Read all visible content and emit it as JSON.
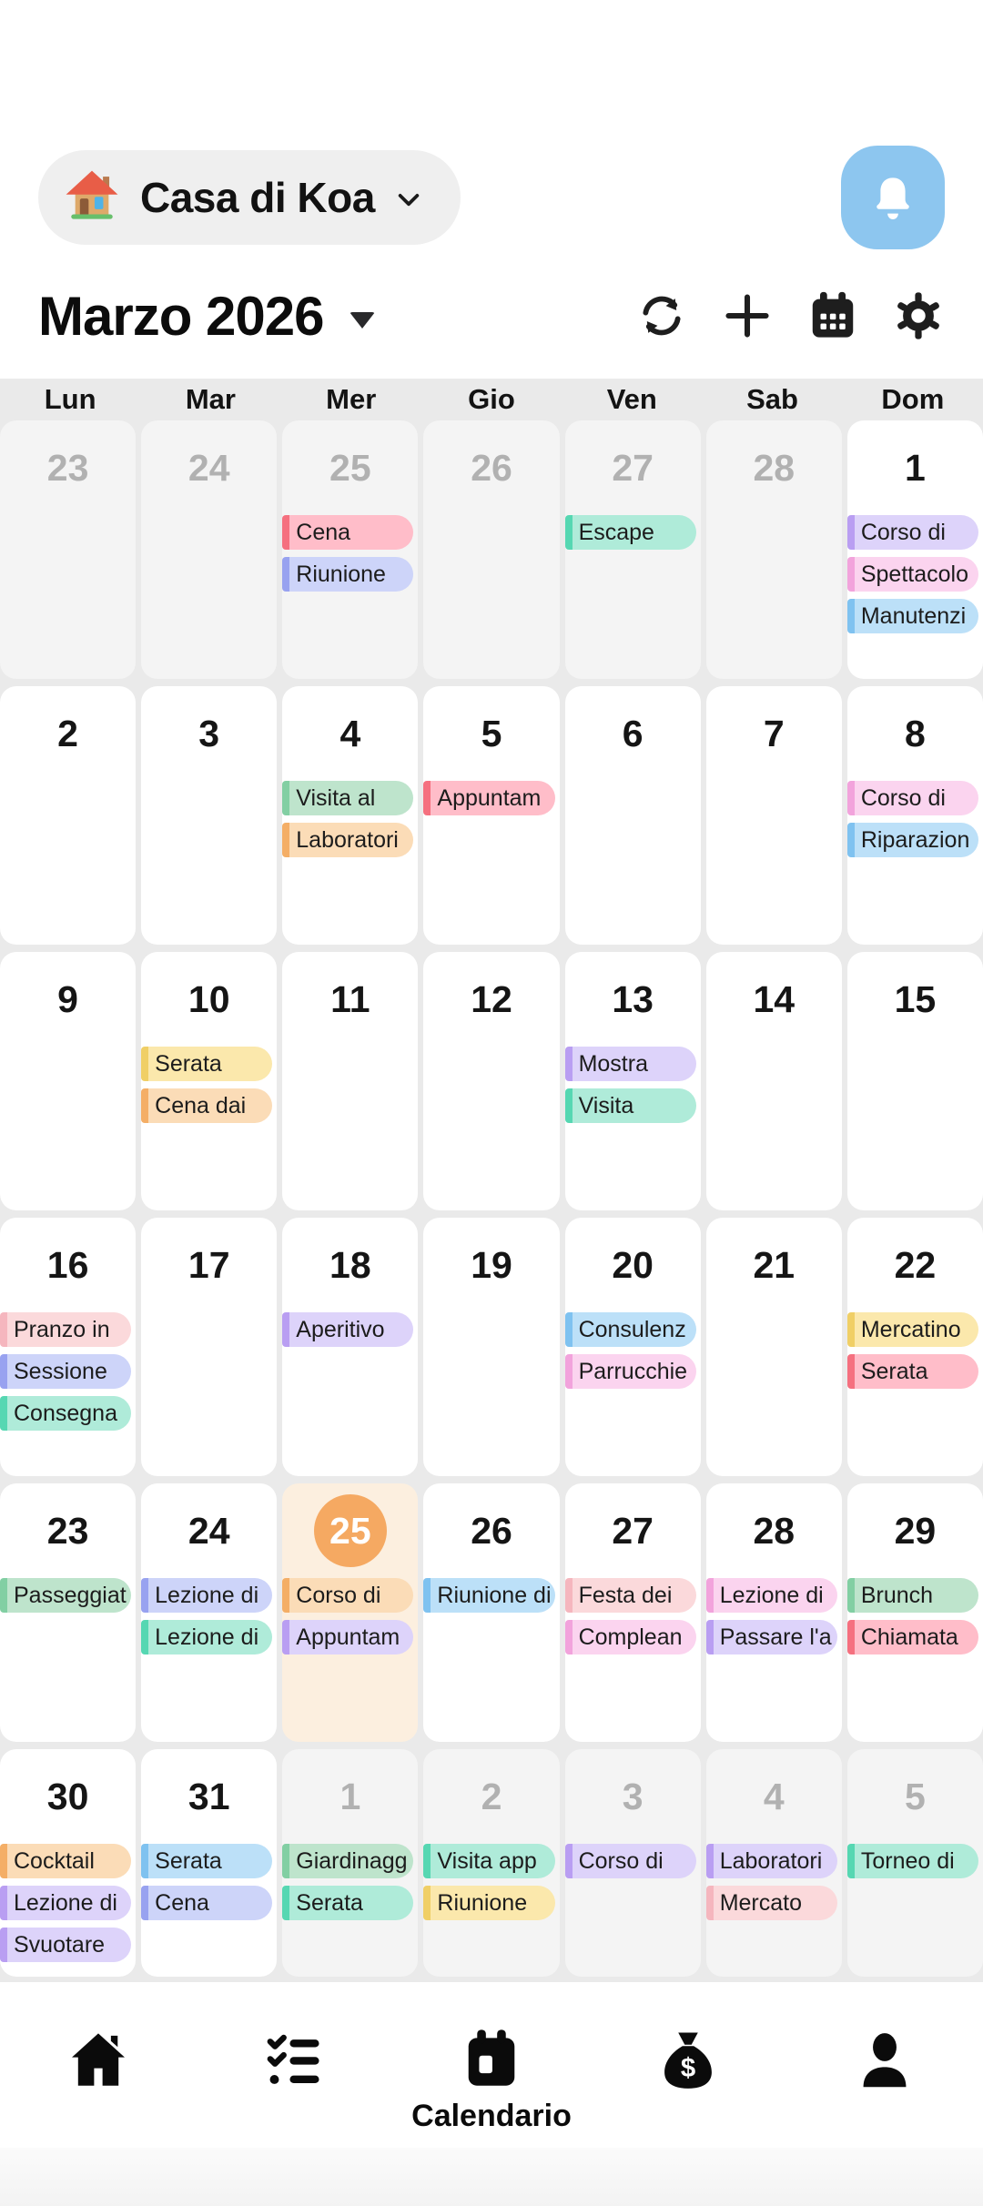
{
  "header": {
    "home_name": "Casa di Koa",
    "home_icon": "house-emoji-icon",
    "notification_icon": "bell-icon",
    "bell_bg": "#8DC6EF"
  },
  "toolbar": {
    "month_title": "Marzo 2026",
    "icons": [
      "sync-icon",
      "add-icon",
      "calendar-view-icon",
      "settings-icon"
    ]
  },
  "weekday_labels": [
    "Lun",
    "Mar",
    "Mer",
    "Gio",
    "Ven",
    "Sab",
    "Dom"
  ],
  "palette": {
    "red": {
      "bg": "#FFBDC9",
      "border": "#F5707F"
    },
    "pink": {
      "bg": "#FBD9DB",
      "border": "#F5B6BE"
    },
    "periwinkle": {
      "bg": "#CDD4F9",
      "border": "#98A2F0"
    },
    "purple": {
      "bg": "#DDD3FA",
      "border": "#B99EF2"
    },
    "magenta": {
      "bg": "#FBD4EF",
      "border": "#F2A3DC"
    },
    "blue": {
      "bg": "#BCE0F8",
      "border": "#7FC2F0"
    },
    "mint": {
      "bg": "#AFEBD9",
      "border": "#56D7B2"
    },
    "green": {
      "bg": "#BEE4CC",
      "border": "#82CFA3"
    },
    "orange": {
      "bg": "#FBDCB7",
      "border": "#F4AE66"
    },
    "yellow": {
      "bg": "#FBE8AC",
      "border": "#F0CF66"
    }
  },
  "today_style": {
    "circle": "#F5A962",
    "cell_bg": "#FCEFDF"
  },
  "weeks": [
    [
      {
        "num": "23",
        "other": true,
        "events": []
      },
      {
        "num": "24",
        "other": true,
        "events": []
      },
      {
        "num": "25",
        "other": true,
        "events": [
          {
            "label": "Cena",
            "color": "red"
          },
          {
            "label": "Riunione",
            "color": "periwinkle"
          }
        ]
      },
      {
        "num": "26",
        "other": true,
        "events": []
      },
      {
        "num": "27",
        "other": true,
        "events": [
          {
            "label": "Escape",
            "color": "mint"
          }
        ]
      },
      {
        "num": "28",
        "other": true,
        "events": []
      },
      {
        "num": "1",
        "other": false,
        "events": [
          {
            "label": "Corso di",
            "color": "purple"
          },
          {
            "label": "Spettacolo",
            "color": "magenta"
          },
          {
            "label": "Manutenzi",
            "color": "blue"
          }
        ]
      }
    ],
    [
      {
        "num": "2",
        "other": false,
        "events": []
      },
      {
        "num": "3",
        "other": false,
        "events": []
      },
      {
        "num": "4",
        "other": false,
        "events": [
          {
            "label": "Visita al",
            "color": "green"
          },
          {
            "label": "Laboratori",
            "color": "orange"
          }
        ]
      },
      {
        "num": "5",
        "other": false,
        "events": [
          {
            "label": "Appuntam",
            "color": "red"
          }
        ]
      },
      {
        "num": "6",
        "other": false,
        "events": []
      },
      {
        "num": "7",
        "other": false,
        "events": []
      },
      {
        "num": "8",
        "other": false,
        "events": [
          {
            "label": "Corso di",
            "color": "magenta"
          },
          {
            "label": "Riparazion",
            "color": "blue"
          }
        ]
      }
    ],
    [
      {
        "num": "9",
        "other": false,
        "events": []
      },
      {
        "num": "10",
        "other": false,
        "events": [
          {
            "label": "Serata",
            "color": "yellow"
          },
          {
            "label": "Cena dai",
            "color": "orange"
          }
        ]
      },
      {
        "num": "11",
        "other": false,
        "events": []
      },
      {
        "num": "12",
        "other": false,
        "events": []
      },
      {
        "num": "13",
        "other": false,
        "events": [
          {
            "label": "Mostra",
            "color": "purple"
          },
          {
            "label": "Visita",
            "color": "mint"
          }
        ]
      },
      {
        "num": "14",
        "other": false,
        "events": []
      },
      {
        "num": "15",
        "other": false,
        "events": []
      }
    ],
    [
      {
        "num": "16",
        "other": false,
        "events": [
          {
            "label": "Pranzo in",
            "color": "pink"
          },
          {
            "label": "Sessione",
            "color": "periwinkle"
          },
          {
            "label": "Consegna",
            "color": "mint"
          }
        ]
      },
      {
        "num": "17",
        "other": false,
        "events": []
      },
      {
        "num": "18",
        "other": false,
        "events": [
          {
            "label": "Aperitivo",
            "color": "purple"
          }
        ]
      },
      {
        "num": "19",
        "other": false,
        "events": []
      },
      {
        "num": "20",
        "other": false,
        "events": [
          {
            "label": "Consulenz",
            "color": "blue"
          },
          {
            "label": "Parrucchie",
            "color": "magenta"
          }
        ]
      },
      {
        "num": "21",
        "other": false,
        "events": []
      },
      {
        "num": "22",
        "other": false,
        "events": [
          {
            "label": "Mercatino",
            "color": "yellow"
          },
          {
            "label": "Serata",
            "color": "red"
          }
        ]
      }
    ],
    [
      {
        "num": "23",
        "other": false,
        "events": [
          {
            "label": "Passeggiat",
            "color": "green"
          }
        ]
      },
      {
        "num": "24",
        "other": false,
        "events": [
          {
            "label": "Lezione di",
            "color": "periwinkle"
          },
          {
            "label": "Lezione di",
            "color": "mint"
          }
        ]
      },
      {
        "num": "25",
        "other": false,
        "today": true,
        "events": [
          {
            "label": "Corso di",
            "color": "orange"
          },
          {
            "label": "Appuntam",
            "color": "purple"
          }
        ]
      },
      {
        "num": "26",
        "other": false,
        "events": [
          {
            "label": "Riunione di",
            "color": "blue"
          }
        ]
      },
      {
        "num": "27",
        "other": false,
        "events": [
          {
            "label": "Festa dei",
            "color": "pink"
          },
          {
            "label": "Complean",
            "color": "magenta"
          }
        ]
      },
      {
        "num": "28",
        "other": false,
        "events": [
          {
            "label": "Lezione di",
            "color": "magenta"
          },
          {
            "label": "Passare l'a",
            "color": "purple"
          }
        ]
      },
      {
        "num": "29",
        "other": false,
        "events": [
          {
            "label": "Brunch",
            "color": "green"
          },
          {
            "label": "Chiamata",
            "color": "red"
          }
        ]
      }
    ],
    [
      {
        "num": "30",
        "other": false,
        "events": [
          {
            "label": "Cocktail",
            "color": "orange"
          },
          {
            "label": "Lezione di",
            "color": "purple"
          },
          {
            "label": "Svuotare",
            "color": "purple"
          }
        ]
      },
      {
        "num": "31",
        "other": false,
        "events": [
          {
            "label": "Serata",
            "color": "blue"
          },
          {
            "label": "Cena",
            "color": "periwinkle"
          }
        ]
      },
      {
        "num": "1",
        "other": true,
        "events": [
          {
            "label": "Giardinagg",
            "color": "green"
          },
          {
            "label": "Serata",
            "color": "mint"
          }
        ]
      },
      {
        "num": "2",
        "other": true,
        "events": [
          {
            "label": "Visita app",
            "color": "mint"
          },
          {
            "label": "Riunione",
            "color": "yellow"
          }
        ]
      },
      {
        "num": "3",
        "other": true,
        "events": [
          {
            "label": "Corso di",
            "color": "purple"
          }
        ]
      },
      {
        "num": "4",
        "other": true,
        "events": [
          {
            "label": "Laboratori",
            "color": "purple"
          },
          {
            "label": "Mercato",
            "color": "pink"
          }
        ]
      },
      {
        "num": "5",
        "other": true,
        "events": [
          {
            "label": "Torneo di",
            "color": "mint"
          }
        ]
      }
    ]
  ],
  "bottom_nav": {
    "items": [
      {
        "icon": "home-icon",
        "label": ""
      },
      {
        "icon": "tasks-icon",
        "label": ""
      },
      {
        "icon": "calendar-icon",
        "label": "Calendario",
        "active": true
      },
      {
        "icon": "money-icon",
        "label": ""
      },
      {
        "icon": "profile-icon",
        "label": ""
      }
    ]
  }
}
